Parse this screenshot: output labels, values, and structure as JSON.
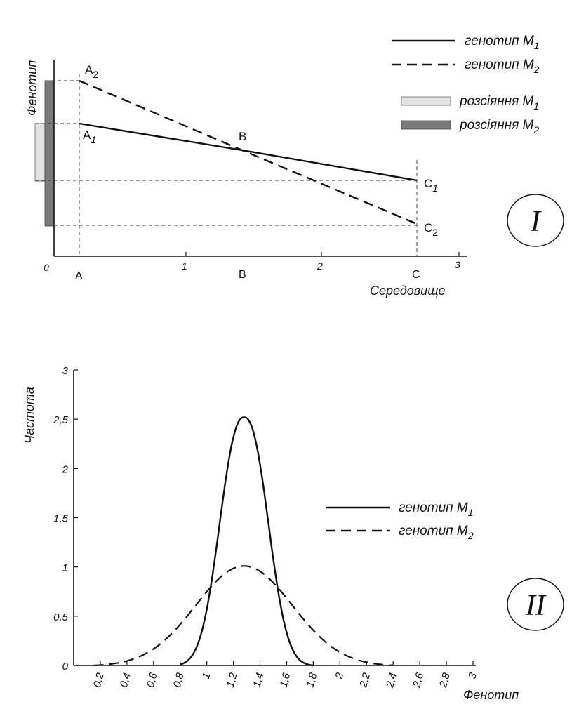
{
  "chart_data": [
    {
      "type": "line",
      "panel": "I",
      "xlabel": "Середовище",
      "ylabel": "Фенотип",
      "xlim": [
        0,
        3
      ],
      "x_ticks": [
        "0",
        "1",
        "2",
        "3"
      ],
      "x_points": [
        "A",
        "B",
        "C"
      ],
      "point_labels": {
        "A1": {
          "base": "A",
          "sub": "1"
        },
        "A2": {
          "base": "A",
          "sub": "2"
        },
        "B": {
          "base": "B",
          "sub": ""
        },
        "C1": {
          "base": "C",
          "sub": "1"
        },
        "C2": {
          "base": "C",
          "sub": "2"
        }
      },
      "series": [
        {
          "name": "генотип M",
          "sub": "1",
          "style": "solid",
          "x": [
            "A",
            "B",
            "C"
          ],
          "y": [
            3.4,
            2.8,
            2.0
          ]
        },
        {
          "name": "генотип M",
          "sub": "2",
          "style": "dashed",
          "x": [
            "A",
            "B",
            "C"
          ],
          "y": [
            4.4,
            2.8,
            0.8
          ]
        }
      ],
      "legend_bars": [
        {
          "name": "розсіяння M",
          "sub": "1",
          "color": "#e2e2e2",
          "range": [
            1.9,
            3.6
          ]
        },
        {
          "name": "розсіяння M",
          "sub": "2",
          "color": "#7a7a7a",
          "range": [
            0.8,
            4.5
          ]
        }
      ]
    },
    {
      "type": "line",
      "panel": "II",
      "xlabel": "Фенотип",
      "ylabel": "Частота",
      "xlim": [
        0,
        3
      ],
      "ylim": [
        0,
        3
      ],
      "x_ticks": [
        "0,2",
        "0,4",
        "0,6",
        "0,8",
        "1",
        "1,2",
        "1,4",
        "1,6",
        "1,8",
        "2",
        "2,2",
        "2,4",
        "2,6",
        "2,8",
        "3"
      ],
      "y_ticks": [
        "0",
        "0,5",
        "1",
        "1,5",
        "2",
        "2,5",
        "3"
      ],
      "series": [
        {
          "name": "генотип M",
          "sub": "1",
          "style": "solid",
          "mean": 1.28,
          "peak": 2.52,
          "support": [
            0.8,
            1.8
          ]
        },
        {
          "name": "генотип M",
          "sub": "2",
          "style": "dashed",
          "mean": 1.28,
          "peak": 1.01,
          "support": [
            0.15,
            2.4
          ]
        }
      ]
    }
  ],
  "panel_labels": {
    "one": "I",
    "two": "II"
  }
}
